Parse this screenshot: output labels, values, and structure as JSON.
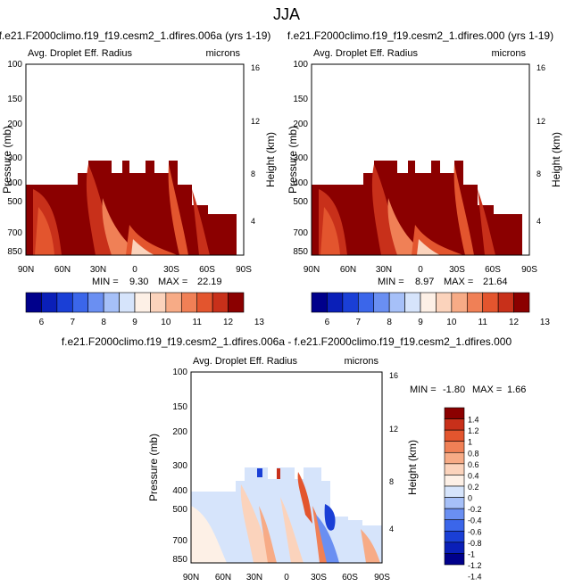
{
  "figure_title": "JJA",
  "colors": {
    "plot_fill": "#8b0000",
    "lbar_main": [
      "#00008b",
      "#0a1fb8",
      "#1a3fd6",
      "#3b66ea",
      "#6a8ff2",
      "#a6c0f8",
      "#d6e4fb",
      "#fdf0e6",
      "#fbd3bc",
      "#f7ab86",
      "#f08056",
      "#e3552e",
      "#c8301a",
      "#8b0000"
    ],
    "lbar_diff": [
      "#00008b",
      "#0a1fb8",
      "#1a3fd6",
      "#3b66ea",
      "#6a8ff2",
      "#a6c0f8",
      "#d6e4fb",
      "#fdf0e6",
      "#fbd3bc",
      "#f7ab86",
      "#f08056",
      "#e3552e",
      "#c8301a",
      "#8b0000"
    ]
  },
  "chart_data": [
    {
      "type": "heatmap",
      "panel_id": "top-left",
      "title": "f.e21.F2000climo.f19_f19.cesm2_1.dfires.006a (yrs 1-19)",
      "subtitle_left": "Avg. Droplet Eff. Radius",
      "units": "microns",
      "ylabel": "Pressure (mb)",
      "ylabel_right": "Height (km)",
      "x_ticks": [
        "90N",
        "60N",
        "30N",
        "0",
        "30S",
        "60S",
        "90S"
      ],
      "y_ticks": [
        "100",
        "150",
        "200",
        "300",
        "400",
        "500",
        "700",
        "850"
      ],
      "y_ticks_right": [
        "16",
        "12",
        "8",
        "4"
      ],
      "stats": {
        "min_label": "MIN =",
        "min": "9.30",
        "max_label": "MAX =",
        "max": "22.19"
      },
      "colorbar_labels": [
        "6",
        "7",
        "8",
        "9",
        "10",
        "11",
        "12",
        "13"
      ]
    },
    {
      "type": "heatmap",
      "panel_id": "top-right",
      "title": "f.e21.F2000climo.f19_f19.cesm2_1.dfires.000 (yrs 1-19)",
      "subtitle_left": "Avg. Droplet Eff. Radius",
      "units": "microns",
      "ylabel": "Pressure (mb)",
      "ylabel_right": "Height (km)",
      "x_ticks": [
        "90N",
        "60N",
        "30N",
        "0",
        "30S",
        "60S",
        "90S"
      ],
      "y_ticks": [
        "100",
        "150",
        "200",
        "300",
        "400",
        "500",
        "700",
        "850"
      ],
      "y_ticks_right": [
        "16",
        "12",
        "8",
        "4"
      ],
      "stats": {
        "min_label": "MIN =",
        "min": "8.97",
        "max_label": "MAX =",
        "max": "21.64"
      },
      "colorbar_labels": [
        "6",
        "7",
        "8",
        "9",
        "10",
        "11",
        "12",
        "13"
      ]
    },
    {
      "type": "heatmap",
      "panel_id": "bottom-difference",
      "title": "f.e21.F2000climo.f19_f19.cesm2_1.dfires.006a - f.e21.F2000climo.f19_f19.cesm2_1.dfires.000",
      "subtitle_left": "Avg. Droplet Eff. Radius",
      "units": "microns",
      "ylabel": "Pressure (mb)",
      "ylabel_right": "Height (km)",
      "x_ticks": [
        "90N",
        "60N",
        "30N",
        "0",
        "30S",
        "60S",
        "90S"
      ],
      "y_ticks": [
        "100",
        "150",
        "200",
        "300",
        "400",
        "500",
        "700",
        "850"
      ],
      "y_ticks_right": [
        "16",
        "12",
        "8",
        "4"
      ],
      "stats": {
        "min_label": "MIN =",
        "min": "-1.80",
        "max_label": "MAX =",
        "max": "1.66"
      },
      "colorbar_labels": [
        "1.4",
        "1.2",
        "1",
        "0.8",
        "0.6",
        "0.4",
        "0.2",
        "0",
        "-0.2",
        "-0.4",
        "-0.6",
        "-0.8",
        "-1",
        "-1.2",
        "-1.4"
      ]
    }
  ]
}
